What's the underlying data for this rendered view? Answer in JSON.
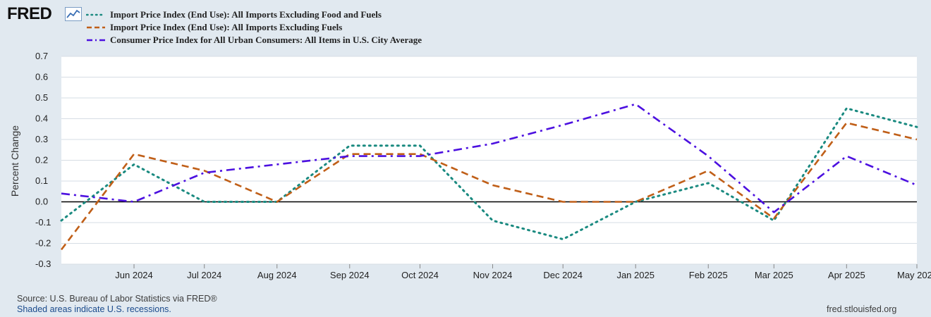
{
  "header": {
    "logo_text": "FRED",
    "logo_icon": "line-chart-icon"
  },
  "colors": {
    "plot_background": "#ffffff",
    "page_background": "#e1e9f0",
    "grid": "#d6dde4",
    "zero_line": "#000000"
  },
  "chart_data": {
    "type": "line",
    "title": "",
    "xlabel": "",
    "ylabel": "Percent Change",
    "ylim": [
      -0.3,
      0.7
    ],
    "yticks": [
      "0.7",
      "0.6",
      "0.5",
      "0.4",
      "0.3",
      "0.2",
      "0.1",
      "0.0",
      "-0.1",
      "-0.2",
      "-0.3"
    ],
    "ytick_values": [
      0.7,
      0.6,
      0.5,
      0.4,
      0.3,
      0.2,
      0.1,
      0.0,
      -0.1,
      -0.2,
      -0.3
    ],
    "x": [
      "2024-05-01",
      "2024-06-01",
      "2024-07-01",
      "2024-08-01",
      "2024-09-01",
      "2024-10-01",
      "2024-11-01",
      "2024-12-01",
      "2025-01-01",
      "2025-02-01",
      "2025-03-01",
      "2025-04-01",
      "2025-05-01"
    ],
    "x_tick_labels": [
      "Jun 2024",
      "Jul 2024",
      "Aug 2024",
      "Sep 2024",
      "Oct 2024",
      "Nov 2024",
      "Dec 2024",
      "Jan 2025",
      "Feb 2025",
      "Mar 2025",
      "Apr 2025",
      "May 202"
    ],
    "grid": true,
    "legend_position": "top-left",
    "series": [
      {
        "name": "Import Price Index (End Use): All Imports Excluding Food and Fuels",
        "color": "#1a8a80",
        "style": "dotted",
        "values": [
          -0.09,
          0.18,
          0.0,
          0.0,
          0.27,
          0.27,
          -0.09,
          -0.18,
          0.0,
          0.09,
          -0.09,
          0.45,
          0.36
        ]
      },
      {
        "name": "Import Price Index (End Use): All Imports Excluding Fuels",
        "color": "#c05f18",
        "style": "dashed",
        "values": [
          -0.23,
          0.23,
          0.15,
          0.0,
          0.23,
          0.23,
          0.08,
          0.0,
          0.0,
          0.15,
          -0.08,
          0.38,
          0.3
        ]
      },
      {
        "name": "Consumer Price Index for All Urban Consumers: All Items in U.S. City Average",
        "color": "#4c10e0",
        "style": "dashdot",
        "values": [
          0.04,
          0.0,
          0.14,
          0.18,
          0.22,
          0.22,
          0.28,
          0.37,
          0.47,
          0.22,
          -0.05,
          0.22,
          0.08
        ]
      }
    ]
  },
  "footer": {
    "source": "Source: U.S. Bureau of Labor Statistics via FRED®",
    "recession_note": "Shaded areas indicate U.S. recessions.",
    "site": "fred.stlouisfed.org"
  }
}
